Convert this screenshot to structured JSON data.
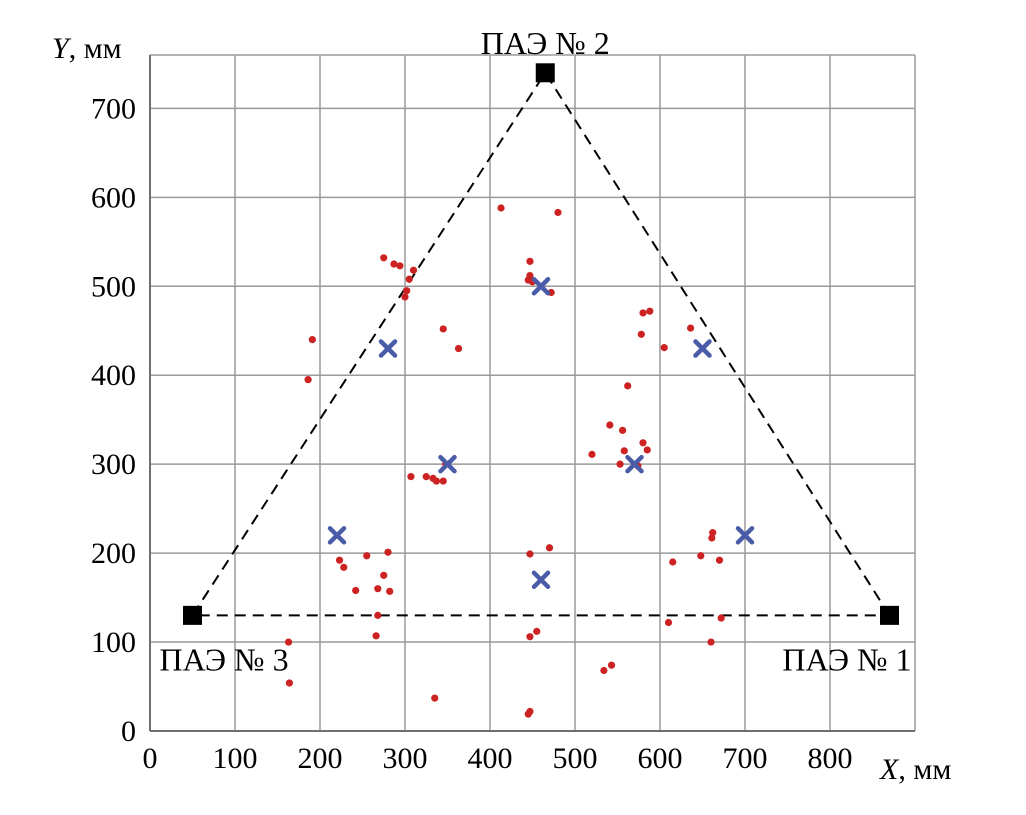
{
  "chart_data": {
    "type": "scatter",
    "xlabel_var": "X",
    "xlabel_unit": ", мм",
    "ylabel_var": "Y",
    "ylabel_unit": ", мм",
    "xlim": [
      0,
      900
    ],
    "ylim": [
      0,
      760
    ],
    "xticks": [
      0,
      100,
      200,
      300,
      400,
      500,
      600,
      700,
      800
    ],
    "yticks": [
      0,
      100,
      200,
      300,
      400,
      500,
      600,
      700
    ],
    "grid": true,
    "sensors": [
      {
        "label": "ПАЭ № 1",
        "x": 870,
        "y": 130
      },
      {
        "label": "ПАЭ № 2",
        "x": 465,
        "y": 740
      },
      {
        "label": "ПАЭ № 3",
        "x": 50,
        "y": 130
      }
    ],
    "colors": {
      "points": "#cc2222",
      "crosses": "#4a5ba8",
      "sensors": "#000000"
    },
    "crosses": [
      {
        "x": 280,
        "y": 430
      },
      {
        "x": 460,
        "y": 500
      },
      {
        "x": 650,
        "y": 430
      },
      {
        "x": 350,
        "y": 300
      },
      {
        "x": 570,
        "y": 300
      },
      {
        "x": 220,
        "y": 220
      },
      {
        "x": 700,
        "y": 220
      },
      {
        "x": 460,
        "y": 170
      }
    ],
    "points": [
      {
        "x": 413,
        "y": 588
      },
      {
        "x": 480,
        "y": 583
      },
      {
        "x": 275,
        "y": 532
      },
      {
        "x": 287,
        "y": 525
      },
      {
        "x": 294,
        "y": 523
      },
      {
        "x": 310,
        "y": 518
      },
      {
        "x": 305,
        "y": 508
      },
      {
        "x": 302,
        "y": 495
      },
      {
        "x": 300,
        "y": 488
      },
      {
        "x": 447,
        "y": 528
      },
      {
        "x": 447,
        "y": 512
      },
      {
        "x": 445,
        "y": 507
      },
      {
        "x": 450,
        "y": 505
      },
      {
        "x": 472,
        "y": 493
      },
      {
        "x": 191,
        "y": 440
      },
      {
        "x": 186,
        "y": 395
      },
      {
        "x": 345,
        "y": 452
      },
      {
        "x": 363,
        "y": 430
      },
      {
        "x": 580,
        "y": 470
      },
      {
        "x": 588,
        "y": 472
      },
      {
        "x": 578,
        "y": 446
      },
      {
        "x": 605,
        "y": 431
      },
      {
        "x": 636,
        "y": 453
      },
      {
        "x": 562,
        "y": 388
      },
      {
        "x": 541,
        "y": 344
      },
      {
        "x": 556,
        "y": 338
      },
      {
        "x": 580,
        "y": 324
      },
      {
        "x": 585,
        "y": 316
      },
      {
        "x": 558,
        "y": 315
      },
      {
        "x": 520,
        "y": 311
      },
      {
        "x": 553,
        "y": 300
      },
      {
        "x": 574,
        "y": 298
      },
      {
        "x": 307,
        "y": 286
      },
      {
        "x": 325,
        "y": 286
      },
      {
        "x": 333,
        "y": 284
      },
      {
        "x": 337,
        "y": 281
      },
      {
        "x": 345,
        "y": 281
      },
      {
        "x": 348,
        "y": 300
      },
      {
        "x": 662,
        "y": 223
      },
      {
        "x": 661,
        "y": 217
      },
      {
        "x": 648,
        "y": 197
      },
      {
        "x": 670,
        "y": 192
      },
      {
        "x": 615,
        "y": 190
      },
      {
        "x": 470,
        "y": 206
      },
      {
        "x": 447,
        "y": 199
      },
      {
        "x": 280,
        "y": 201
      },
      {
        "x": 255,
        "y": 197
      },
      {
        "x": 223,
        "y": 192
      },
      {
        "x": 228,
        "y": 184
      },
      {
        "x": 275,
        "y": 175
      },
      {
        "x": 268,
        "y": 160
      },
      {
        "x": 282,
        "y": 157
      },
      {
        "x": 242,
        "y": 158
      },
      {
        "x": 268,
        "y": 130
      },
      {
        "x": 266,
        "y": 107
      },
      {
        "x": 610,
        "y": 122
      },
      {
        "x": 672,
        "y": 127
      },
      {
        "x": 660,
        "y": 100
      },
      {
        "x": 455,
        "y": 112
      },
      {
        "x": 447,
        "y": 106
      },
      {
        "x": 163,
        "y": 100
      },
      {
        "x": 164,
        "y": 54
      },
      {
        "x": 543,
        "y": 74
      },
      {
        "x": 534,
        "y": 68
      },
      {
        "x": 335,
        "y": 37
      },
      {
        "x": 447,
        "y": 22
      },
      {
        "x": 445,
        "y": 19
      }
    ]
  }
}
